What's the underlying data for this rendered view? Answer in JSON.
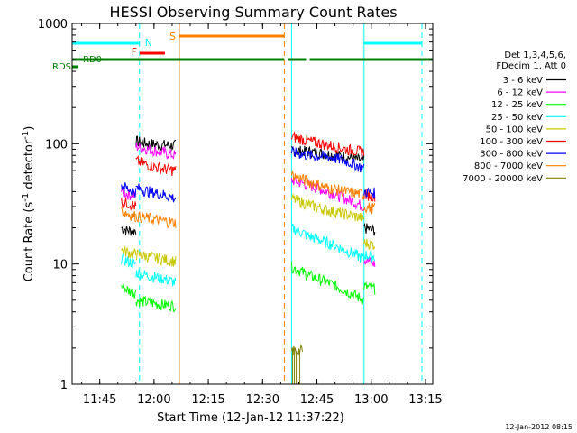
{
  "chart_data": {
    "type": "line",
    "title": "HESSI Observing Summary Count Rates",
    "xlabel": "Start Time (12-Jan-12 11:37:22)",
    "ylabel": "Count Rate (s",
    "ylabel_sup": "-1",
    "ylabel_mid": " detector",
    "ylabel_sup2": "-1",
    "ylabel_end": ")",
    "yscale": "log",
    "ylim": [
      1,
      1000
    ],
    "xlim": [
      "11:37:22",
      "13:17:00"
    ],
    "x_ticks": [
      "11:45",
      "12:00",
      "12:15",
      "12:30",
      "12:45",
      "13:00",
      "13:15"
    ],
    "y_ticks": [
      "1",
      "10",
      "100",
      "1000"
    ],
    "legend_title": [
      "Det 1,3,4,5,6,",
      "FDecim 1, Att 0"
    ],
    "legend_placement": "right",
    "series": [
      {
        "name": "3 - 6 keV",
        "color": "#000000",
        "seg1": {
          "start": "11:51",
          "end": "11:55",
          "values": [
            20,
            19,
            19
          ]
        },
        "seg1b": {
          "start": "11:55",
          "end": "12:06",
          "values": [
            105,
            100,
            98,
            97
          ]
        },
        "seg2": {
          "start": "12:38",
          "end": "12:58",
          "values": [
            88,
            86,
            82,
            78,
            72
          ]
        },
        "seg2b": {
          "start": "12:58",
          "end": "13:01",
          "values": [
            20,
            19
          ]
        }
      },
      {
        "name": "6 - 12 keV",
        "color": "#ff00ff",
        "seg1": {
          "start": "11:51",
          "end": "11:55",
          "values": [
            40,
            38,
            37
          ]
        },
        "seg1b": {
          "start": "11:55",
          "end": "12:06",
          "values": [
            95,
            90,
            85,
            80
          ]
        },
        "seg2": {
          "start": "12:38",
          "end": "12:58",
          "values": [
            50,
            45,
            40,
            35,
            30
          ]
        },
        "seg2b": {
          "start": "12:58",
          "end": "13:01",
          "values": [
            11,
            10
          ]
        }
      },
      {
        "name": "12 - 25 keV",
        "color": "#00ff00",
        "seg1": {
          "start": "11:51",
          "end": "11:55",
          "values": [
            6.5,
            6.0,
            5.8
          ]
        },
        "seg1b": {
          "start": "11:55",
          "end": "12:06",
          "values": [
            5.0,
            4.8,
            4.6,
            4.5
          ]
        },
        "seg2": {
          "start": "12:38",
          "end": "12:58",
          "values": [
            9.5,
            8.0,
            7.0,
            6.0,
            5.0
          ]
        },
        "seg2b": {
          "start": "12:58",
          "end": "13:01",
          "values": [
            6.5,
            6.2
          ]
        }
      },
      {
        "name": "25 - 50 keV",
        "color": "#00ffff",
        "seg1": {
          "start": "11:51",
          "end": "11:55",
          "values": [
            11,
            10.5,
            10
          ]
        },
        "seg1b": {
          "start": "11:55",
          "end": "12:06",
          "values": [
            8.5,
            8.0,
            7.6,
            7.0
          ]
        },
        "seg2": {
          "start": "12:38",
          "end": "12:58",
          "values": [
            20,
            17,
            15,
            13,
            11
          ]
        },
        "seg2b": {
          "start": "12:58",
          "end": "13:01",
          "values": [
            12,
            11.5
          ]
        }
      },
      {
        "name": "50 - 100 keV",
        "color": "#c8c800",
        "seg1": {
          "start": "11:51",
          "end": "11:55",
          "values": [
            13,
            12.5,
            12
          ]
        },
        "seg1b": {
          "start": "11:55",
          "end": "12:06",
          "values": [
            12,
            11.5,
            11,
            10.5
          ]
        },
        "seg2": {
          "start": "12:38",
          "end": "12:58",
          "values": [
            35,
            31,
            28,
            26,
            24
          ]
        },
        "seg2b": {
          "start": "12:58",
          "end": "13:01",
          "values": [
            15,
            14.5
          ]
        }
      },
      {
        "name": "100 - 300 keV",
        "color": "#ff0000",
        "seg1": {
          "start": "11:51",
          "end": "11:55",
          "values": [
            33,
            32,
            30
          ]
        },
        "seg1b": {
          "start": "11:55",
          "end": "12:06",
          "values": [
            72,
            66,
            62,
            60
          ]
        },
        "seg2": {
          "start": "12:38",
          "end": "12:58",
          "values": [
            115,
            105,
            98,
            90,
            85
          ]
        },
        "seg2b": {
          "start": "12:58",
          "end": "13:01",
          "values": [
            38,
            37
          ]
        }
      },
      {
        "name": "300 - 800 keV",
        "color": "#0000ff",
        "seg1": {
          "start": "11:51",
          "end": "11:55",
          "values": [
            45,
            42,
            40
          ]
        },
        "seg1b": {
          "start": "11:55",
          "end": "12:06",
          "values": [
            43,
            40,
            38,
            35
          ]
        },
        "seg2": {
          "start": "12:38",
          "end": "12:58",
          "values": [
            85,
            80,
            78,
            72,
            62
          ]
        },
        "seg2b": {
          "start": "12:58",
          "end": "13:01",
          "values": [
            40,
            39
          ]
        }
      },
      {
        "name": "800 - 7000 keV",
        "color": "#ff8000",
        "seg1": {
          "start": "11:51",
          "end": "11:55",
          "values": [
            28,
            26,
            25
          ]
        },
        "seg1b": {
          "start": "11:55",
          "end": "12:06",
          "values": [
            25,
            24,
            23,
            22
          ]
        },
        "seg2": {
          "start": "12:38",
          "end": "12:58",
          "values": [
            55,
            48,
            43,
            40,
            38
          ]
        },
        "seg2b": {
          "start": "12:58",
          "end": "13:01",
          "values": [
            30,
            29
          ]
        }
      },
      {
        "name": "7000 - 20000 keV",
        "color": "#808000",
        "seg1": null,
        "seg1b": null,
        "seg2": {
          "start": "12:38",
          "end": "12:41",
          "values": [
            1.9,
            1.9
          ]
        },
        "seg2b": null
      }
    ],
    "flags": [
      {
        "name": "RD0",
        "label": "RD0",
        "color": "#008000"
      },
      {
        "name": "RDS",
        "label": "RDS",
        "color": "#008000"
      },
      {
        "name": "N",
        "label": "N",
        "color": "#00ffff"
      },
      {
        "name": "F",
        "label": "F",
        "color": "#ff0000"
      },
      {
        "name": "S",
        "label": "S",
        "color": "#ff8000"
      }
    ],
    "flag_segments": {
      "N": [
        [
          "11:37:22",
          "11:56"
        ],
        [
          "12:58",
          "13:14"
        ]
      ],
      "F": [
        [
          "11:56",
          "12:03"
        ]
      ],
      "S": [
        [
          "12:07",
          "12:36"
        ]
      ],
      "RD0": [
        [
          "11:37:22",
          "12:36"
        ],
        [
          "12:37",
          "12:42"
        ],
        [
          "12:43",
          "13:17"
        ]
      ]
    },
    "vlines": [
      {
        "time": "11:37:22",
        "color": "#00ffff",
        "dash": false
      },
      {
        "time": "11:56",
        "color": "#00ffff",
        "dash": true
      },
      {
        "time": "12:07",
        "color": "#ff8000",
        "dash": false
      },
      {
        "time": "12:36",
        "color": "#ff8000",
        "dash": true
      },
      {
        "time": "12:38",
        "color": "#00ffff",
        "dash": false
      },
      {
        "time": "12:58",
        "color": "#00ffff",
        "dash": false
      },
      {
        "time": "13:14",
        "color": "#00ffff",
        "dash": true
      }
    ]
  },
  "footer_date": "12-Jan-2012 08:15"
}
